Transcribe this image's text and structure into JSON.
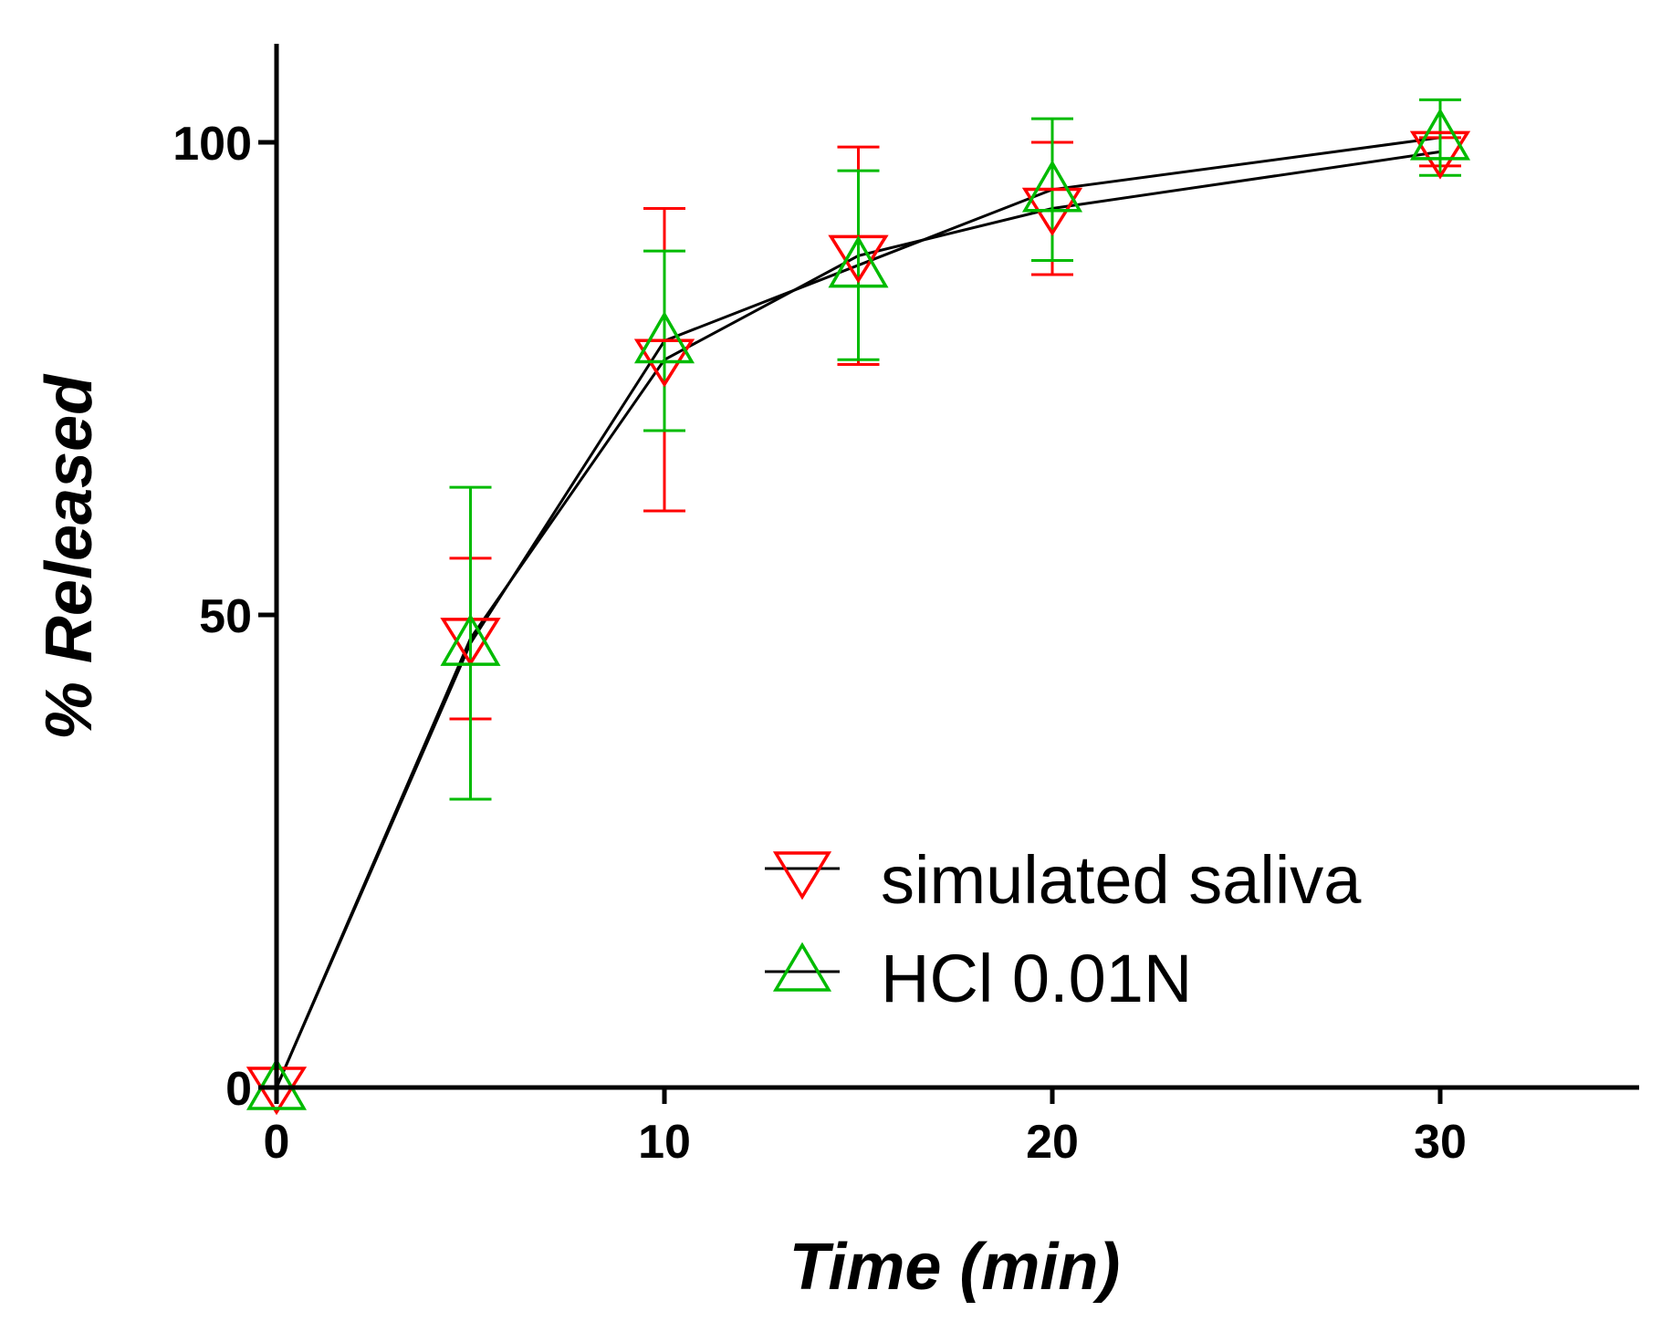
{
  "chart_data": {
    "type": "line",
    "title": "",
    "xlabel": "Time (min)",
    "ylabel": "% Released",
    "xlim": [
      0,
      35
    ],
    "ylim": [
      0,
      110
    ],
    "x_ticks": [
      0,
      10,
      20,
      30
    ],
    "y_ticks": [
      0,
      50,
      100
    ],
    "x_tick_labels": [
      "0",
      "10",
      "20",
      "30"
    ],
    "y_tick_labels": [
      "0",
      "50",
      "100"
    ],
    "grid": false,
    "legend_position": "bottom-right",
    "line_color": "#000000",
    "series": [
      {
        "name": "simulated saliva",
        "marker": "triangle-down",
        "color": "#ff0000",
        "x": [
          0,
          5,
          10,
          15,
          20,
          30
        ],
        "y": [
          0,
          47.5,
          77,
          88,
          93,
          99
        ],
        "error": [
          0,
          8.5,
          16,
          11.5,
          7,
          1.5
        ]
      },
      {
        "name": "HCl 0.01N",
        "marker": "triangle-up",
        "color": "#00bb00",
        "x": [
          0,
          5,
          10,
          15,
          20,
          30
        ],
        "y": [
          0,
          47,
          79,
          87,
          95,
          100.5
        ],
        "error": [
          0,
          16.5,
          9.5,
          10,
          7.5,
          4
        ]
      }
    ]
  }
}
